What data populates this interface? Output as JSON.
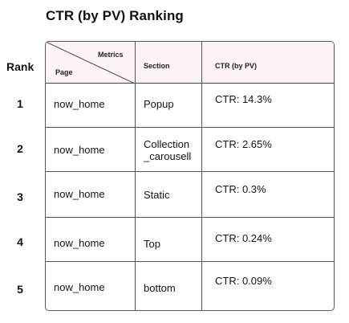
{
  "title": "CTR (by PV) Ranking",
  "rank_header": "Rank",
  "table_header": {
    "metrics": "Metrics",
    "page": "Page",
    "section": "Section",
    "ctr": "CTR (by PV)"
  },
  "rows": [
    {
      "rank": "1",
      "page": "now_home",
      "section": "Popup",
      "ctr": "CTR: 14.3%"
    },
    {
      "rank": "2",
      "page": "now_home",
      "section": "Collection\n_carousell",
      "ctr": "CTR: 2.65%"
    },
    {
      "rank": "3",
      "page": "now_home",
      "section": "Static",
      "ctr": "CTR: 0.3%"
    },
    {
      "rank": "4",
      "page": "now_home",
      "section": "Top",
      "ctr": "CTR: 0.24%"
    },
    {
      "rank": "5",
      "page": "now_home",
      "section": "bottom",
      "ctr": "CTR: 0.09%"
    }
  ],
  "colors": {
    "header_bg": "#fcf3f3",
    "border": "#555555"
  }
}
